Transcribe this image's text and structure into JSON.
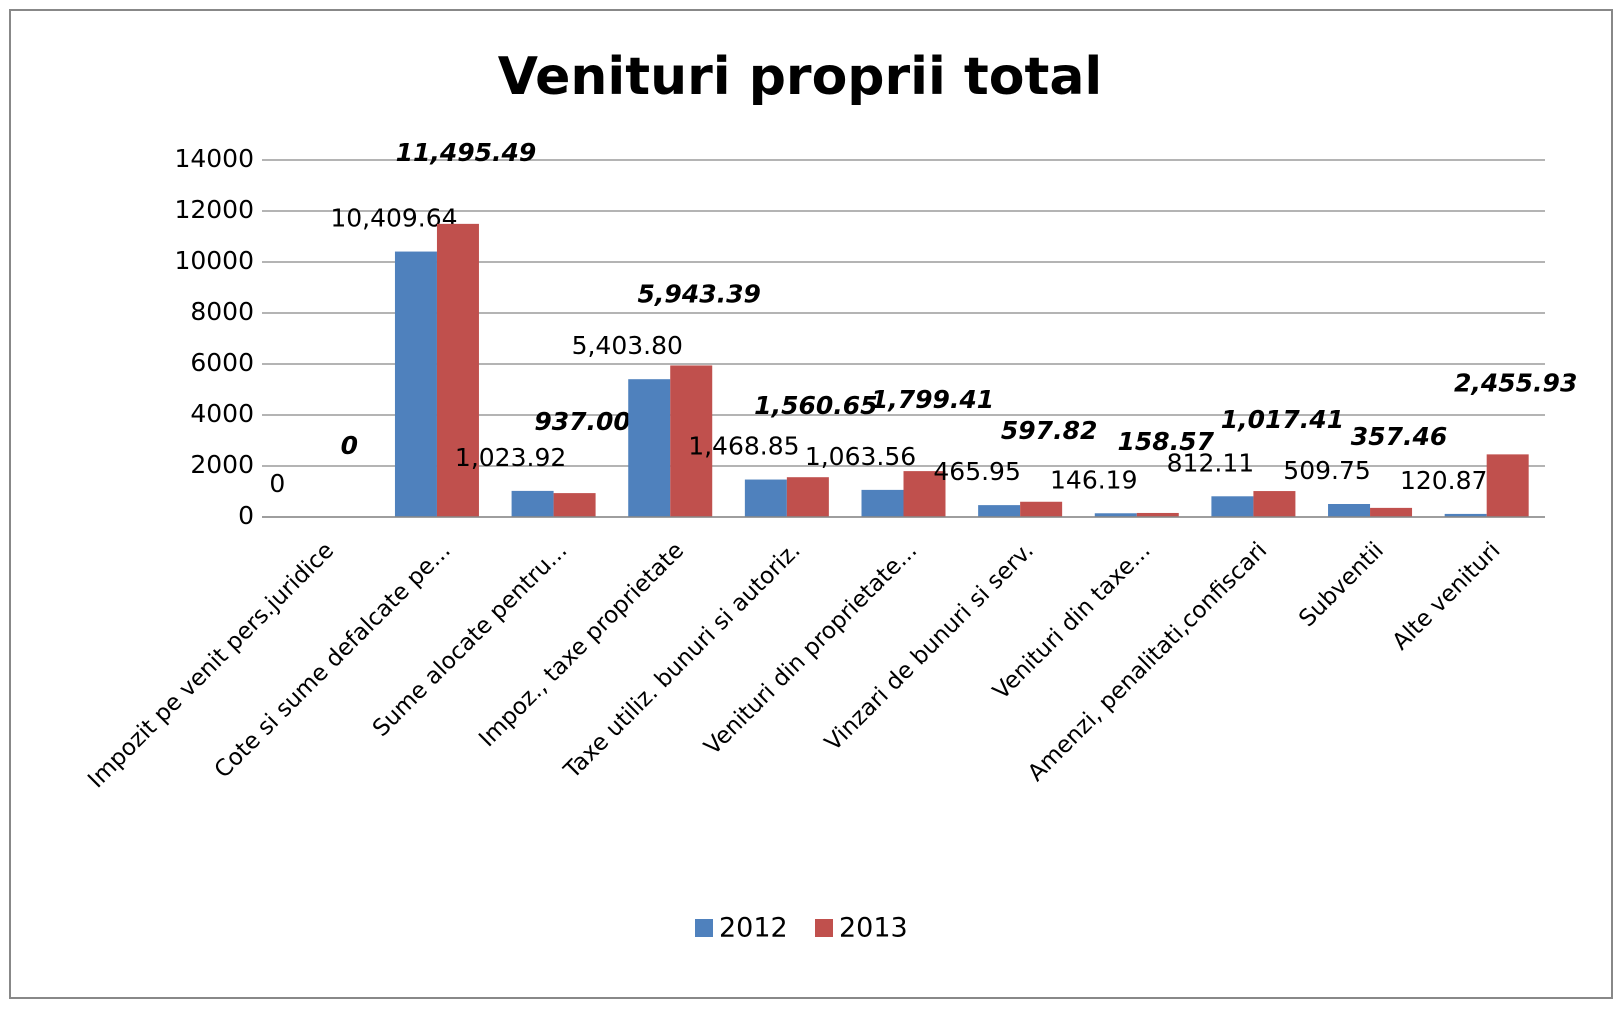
{
  "chart_data": {
    "type": "bar",
    "title": "Venituri proprii total",
    "categories": [
      "Impozit pe venit pers.juridice",
      "Cote si sume defalcate pe...",
      "Sume alocate  pentru...",
      "Impoz., taxe proprietate",
      "Taxe utiliz. bunuri si autoriz.",
      "Venituri din proprietate...",
      "Vinzari de bunuri si serv.",
      "Venituri din taxe...",
      "Amenzi, penalitati,confiscari",
      "Subventii",
      "Alte venituri"
    ],
    "series": [
      {
        "name": "2012",
        "color": "#4f81bd",
        "values": [
          0,
          10409.64,
          1023.92,
          5403.8,
          1468.85,
          1063.56,
          465.95,
          146.19,
          812.11,
          509.75,
          120.87
        ],
        "value_labels": [
          "0",
          "10,409.64",
          "1,023.92",
          "5,403.80",
          "1,468.85",
          "1,063.56",
          "465.95",
          "146.19",
          "812.11",
          "509.75",
          "120.87"
        ]
      },
      {
        "name": "2013",
        "color": "#c0504d",
        "values": [
          0,
          11495.49,
          937,
          5943.39,
          1560.65,
          1799.41,
          597.82,
          158.57,
          1017.41,
          357.46,
          2455.93
        ],
        "value_labels": [
          "0",
          "11,495.49",
          "937.00",
          "5,943.39",
          "1,560.65",
          "1,799.41",
          "597.82",
          "158.57",
          "1,017.41",
          "357.46",
          "2,455.93"
        ]
      }
    ],
    "ylim": [
      0,
      14000
    ],
    "yticks": [
      0,
      2000,
      4000,
      6000,
      8000,
      10000,
      12000,
      14000
    ],
    "grid": true,
    "legend": "bottom"
  }
}
